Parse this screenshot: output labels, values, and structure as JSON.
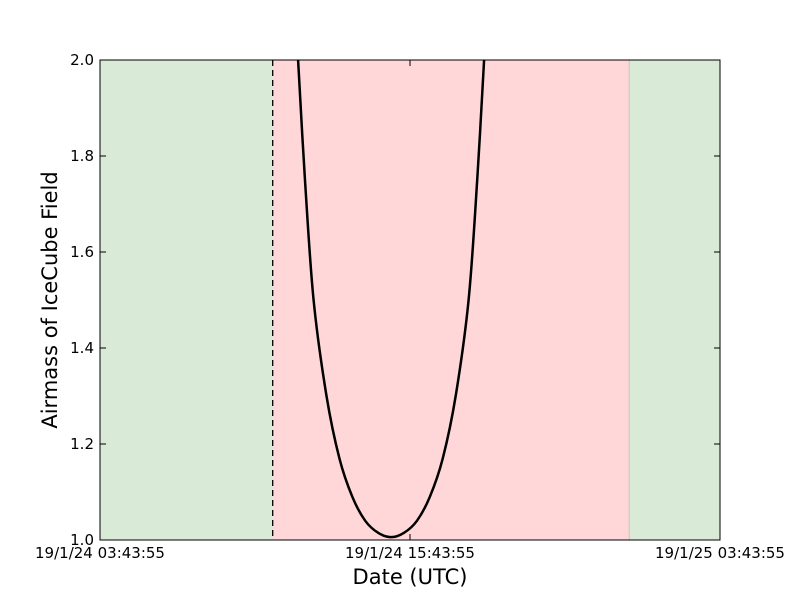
{
  "chart_data": {
    "type": "line",
    "title": "",
    "xlabel": "Date (UTC)",
    "ylabel": "Airmass of IceCube Field",
    "x_axis_type": "datetime",
    "xlim": [
      "2019-01-24T03:43:55",
      "2019-01-25T03:43:55"
    ],
    "ylim": [
      1.0,
      2.0
    ],
    "xticks": [
      {
        "value": "2019-01-24T03:43:55",
        "label": "19/1/24 03:43:55"
      },
      {
        "value": "2019-01-24T15:43:55",
        "label": "19/1/24 15:43:55"
      },
      {
        "value": "2019-01-25T03:43:55",
        "label": "19/1/25 03:43:55"
      }
    ],
    "yticks": [
      {
        "value": 1.0,
        "label": "1.0"
      },
      {
        "value": 1.2,
        "label": "1.2"
      },
      {
        "value": 1.4,
        "label": "1.4"
      },
      {
        "value": 1.6,
        "label": "1.6"
      },
      {
        "value": 1.8,
        "label": "1.8"
      },
      {
        "value": 2.0,
        "label": "2.0"
      }
    ],
    "grid": false,
    "legend": "none",
    "shaded_regions": [
      {
        "start": "2019-01-24T03:43:55",
        "end": "2019-01-24T10:25:00",
        "color": "#d9ead7"
      },
      {
        "start": "2019-01-24T10:25:00",
        "end": "2019-01-25T00:13:00",
        "color": "#ffd7d9"
      },
      {
        "start": "2019-01-25T00:13:00",
        "end": "2019-01-25T03:43:55",
        "color": "#d9ead7"
      }
    ],
    "vlines": [
      {
        "x": "2019-01-24T10:25:00",
        "style": "dashed",
        "color": "#000000"
      }
    ],
    "series": [
      {
        "color": "#000000",
        "points": [
          {
            "x": "2019-01-24T11:24:00",
            "y": 2.0
          },
          {
            "x": "2019-01-24T11:40:00",
            "y": 1.75
          },
          {
            "x": "2019-01-24T12:00:00",
            "y": 1.5
          },
          {
            "x": "2019-01-24T12:30:00",
            "y": 1.3
          },
          {
            "x": "2019-01-24T13:00:00",
            "y": 1.17
          },
          {
            "x": "2019-01-24T13:30:00",
            "y": 1.09
          },
          {
            "x": "2019-01-24T14:00:00",
            "y": 1.04
          },
          {
            "x": "2019-01-24T14:30:00",
            "y": 1.015
          },
          {
            "x": "2019-01-24T15:00:00",
            "y": 1.006
          },
          {
            "x": "2019-01-24T15:30:00",
            "y": 1.015
          },
          {
            "x": "2019-01-24T16:00:00",
            "y": 1.04
          },
          {
            "x": "2019-01-24T16:30:00",
            "y": 1.09
          },
          {
            "x": "2019-01-24T17:00:00",
            "y": 1.17
          },
          {
            "x": "2019-01-24T17:30:00",
            "y": 1.3
          },
          {
            "x": "2019-01-24T18:00:00",
            "y": 1.5
          },
          {
            "x": "2019-01-24T18:20:00",
            "y": 1.75
          },
          {
            "x": "2019-01-24T18:36:00",
            "y": 2.0
          }
        ]
      }
    ]
  }
}
